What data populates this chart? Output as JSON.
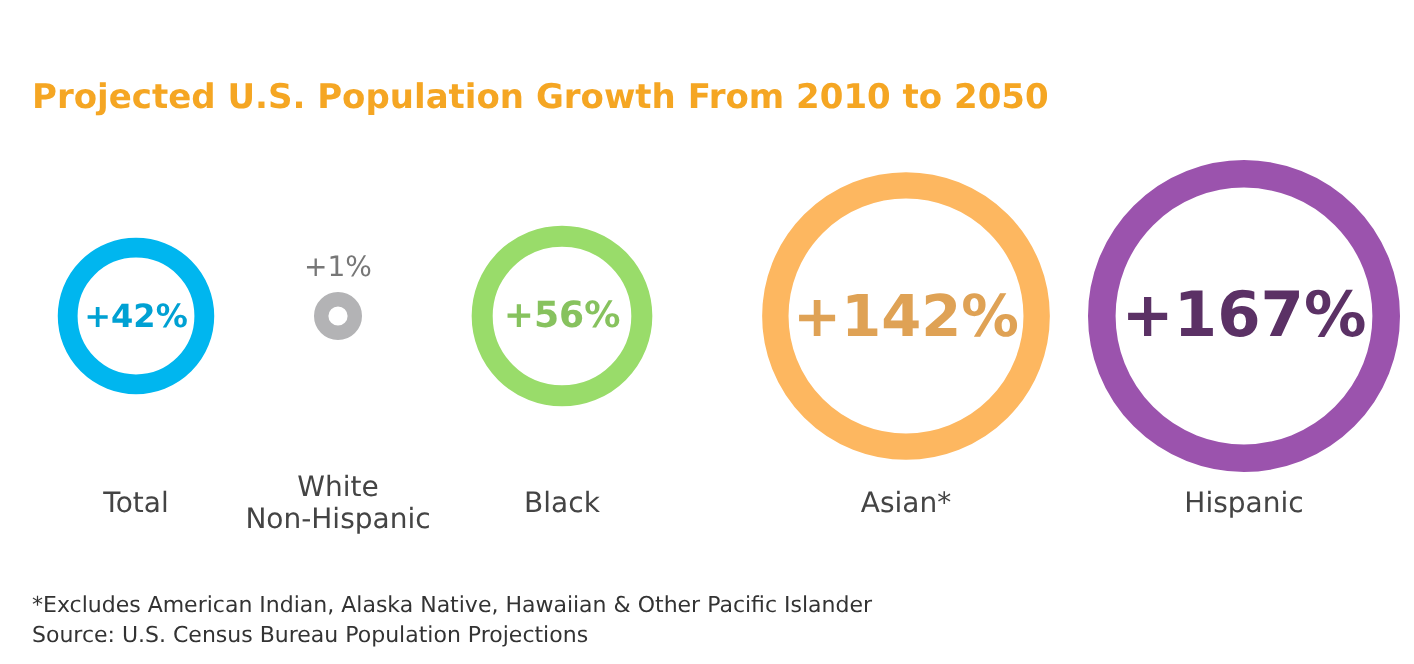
{
  "chart_data": {
    "type": "other",
    "title": "Projected U.S. Population Growth From 2010 to 2050",
    "categories": [
      "Total",
      "White\nNon-Hispanic",
      "Black",
      "Asian*",
      "Hispanic"
    ],
    "values": [
      42,
      1,
      56,
      142,
      167
    ],
    "value_labels": [
      "+42%",
      "+1%",
      "+56%",
      "+142%",
      "+167%"
    ],
    "colors": [
      "#00b6ef",
      "#b3b3b5",
      "#99dc6a",
      "#fdb760",
      "#9b53ad"
    ],
    "annotations": [
      "*Excludes American Indian, Alaska Native, Hawaiian & Other Pacific Islander",
      "Source: U.S. Census Bureau Population Projections"
    ]
  }
}
